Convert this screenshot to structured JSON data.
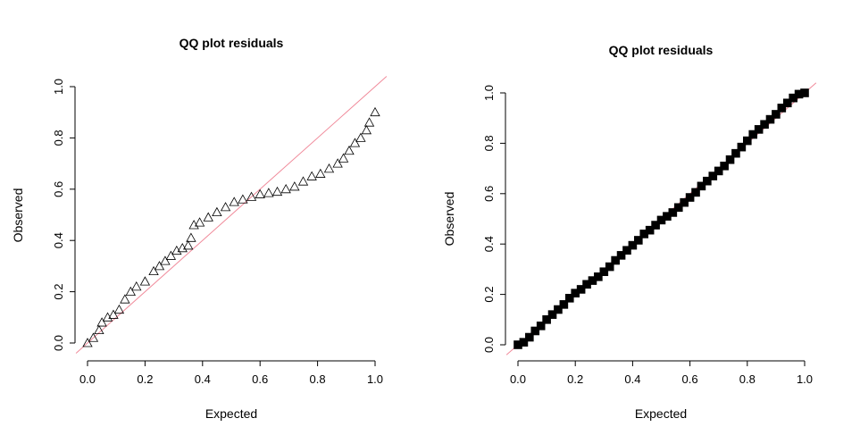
{
  "chart_data": [
    {
      "type": "scatter",
      "title": "QQ plot residuals",
      "xlabel": "Expected",
      "ylabel": "Observed",
      "xlim": [
        0,
        1
      ],
      "ylim": [
        0,
        1
      ],
      "x_ticks": [
        "0.0",
        "0.2",
        "0.4",
        "0.6",
        "0.8",
        "1.0"
      ],
      "y_ticks": [
        "0.0",
        "0.2",
        "0.4",
        "0.6",
        "0.8",
        "1.0"
      ],
      "marker": "open-triangle",
      "reference_line": {
        "slope": 1,
        "intercept": 0,
        "color": "#f08a9a"
      },
      "points": [
        [
          0.0,
          0.0
        ],
        [
          0.02,
          0.02
        ],
        [
          0.04,
          0.05
        ],
        [
          0.05,
          0.08
        ],
        [
          0.07,
          0.1
        ],
        [
          0.09,
          0.11
        ],
        [
          0.11,
          0.13
        ],
        [
          0.13,
          0.17
        ],
        [
          0.15,
          0.2
        ],
        [
          0.17,
          0.22
        ],
        [
          0.2,
          0.24
        ],
        [
          0.23,
          0.28
        ],
        [
          0.25,
          0.3
        ],
        [
          0.27,
          0.32
        ],
        [
          0.29,
          0.34
        ],
        [
          0.31,
          0.36
        ],
        [
          0.33,
          0.37
        ],
        [
          0.35,
          0.38
        ],
        [
          0.36,
          0.41
        ],
        [
          0.37,
          0.46
        ],
        [
          0.39,
          0.47
        ],
        [
          0.42,
          0.49
        ],
        [
          0.45,
          0.51
        ],
        [
          0.48,
          0.53
        ],
        [
          0.51,
          0.55
        ],
        [
          0.54,
          0.56
        ],
        [
          0.57,
          0.57
        ],
        [
          0.6,
          0.58
        ],
        [
          0.63,
          0.585
        ],
        [
          0.66,
          0.59
        ],
        [
          0.69,
          0.6
        ],
        [
          0.72,
          0.61
        ],
        [
          0.75,
          0.63
        ],
        [
          0.78,
          0.65
        ],
        [
          0.81,
          0.66
        ],
        [
          0.84,
          0.68
        ],
        [
          0.87,
          0.7
        ],
        [
          0.89,
          0.72
        ],
        [
          0.91,
          0.75
        ],
        [
          0.93,
          0.78
        ],
        [
          0.95,
          0.8
        ],
        [
          0.97,
          0.83
        ],
        [
          0.98,
          0.86
        ],
        [
          1.0,
          0.9
        ]
      ]
    },
    {
      "type": "scatter",
      "title": "QQ plot residuals",
      "xlabel": "Expected",
      "ylabel": "Observed",
      "xlim": [
        0,
        1
      ],
      "ylim": [
        0,
        1
      ],
      "x_ticks": [
        "0.0",
        "0.2",
        "0.4",
        "0.6",
        "0.8",
        "1.0"
      ],
      "y_ticks": [
        "0.0",
        "0.2",
        "0.4",
        "0.6",
        "0.8",
        "1.0"
      ],
      "marker": "filled-square",
      "reference_line": {
        "slope": 1,
        "intercept": 0,
        "color": "#f08a9a"
      },
      "points": [
        [
          0.0,
          0.0
        ],
        [
          0.02,
          0.01
        ],
        [
          0.04,
          0.03
        ],
        [
          0.06,
          0.055
        ],
        [
          0.08,
          0.075
        ],
        [
          0.1,
          0.1
        ],
        [
          0.12,
          0.12
        ],
        [
          0.14,
          0.14
        ],
        [
          0.16,
          0.16
        ],
        [
          0.18,
          0.185
        ],
        [
          0.2,
          0.205
        ],
        [
          0.22,
          0.22
        ],
        [
          0.24,
          0.24
        ],
        [
          0.26,
          0.255
        ],
        [
          0.28,
          0.27
        ],
        [
          0.3,
          0.29
        ],
        [
          0.32,
          0.31
        ],
        [
          0.34,
          0.335
        ],
        [
          0.36,
          0.355
        ],
        [
          0.38,
          0.375
        ],
        [
          0.4,
          0.395
        ],
        [
          0.42,
          0.415
        ],
        [
          0.44,
          0.44
        ],
        [
          0.46,
          0.455
        ],
        [
          0.48,
          0.475
        ],
        [
          0.5,
          0.495
        ],
        [
          0.52,
          0.51
        ],
        [
          0.54,
          0.525
        ],
        [
          0.56,
          0.545
        ],
        [
          0.58,
          0.565
        ],
        [
          0.6,
          0.585
        ],
        [
          0.62,
          0.605
        ],
        [
          0.64,
          0.63
        ],
        [
          0.66,
          0.65
        ],
        [
          0.68,
          0.67
        ],
        [
          0.7,
          0.69
        ],
        [
          0.72,
          0.71
        ],
        [
          0.74,
          0.735
        ],
        [
          0.76,
          0.76
        ],
        [
          0.78,
          0.785
        ],
        [
          0.8,
          0.81
        ],
        [
          0.82,
          0.835
        ],
        [
          0.84,
          0.855
        ],
        [
          0.86,
          0.875
        ],
        [
          0.88,
          0.895
        ],
        [
          0.9,
          0.915
        ],
        [
          0.92,
          0.94
        ],
        [
          0.94,
          0.96
        ],
        [
          0.96,
          0.98
        ],
        [
          0.98,
          0.995
        ],
        [
          1.0,
          1.0
        ]
      ]
    }
  ]
}
